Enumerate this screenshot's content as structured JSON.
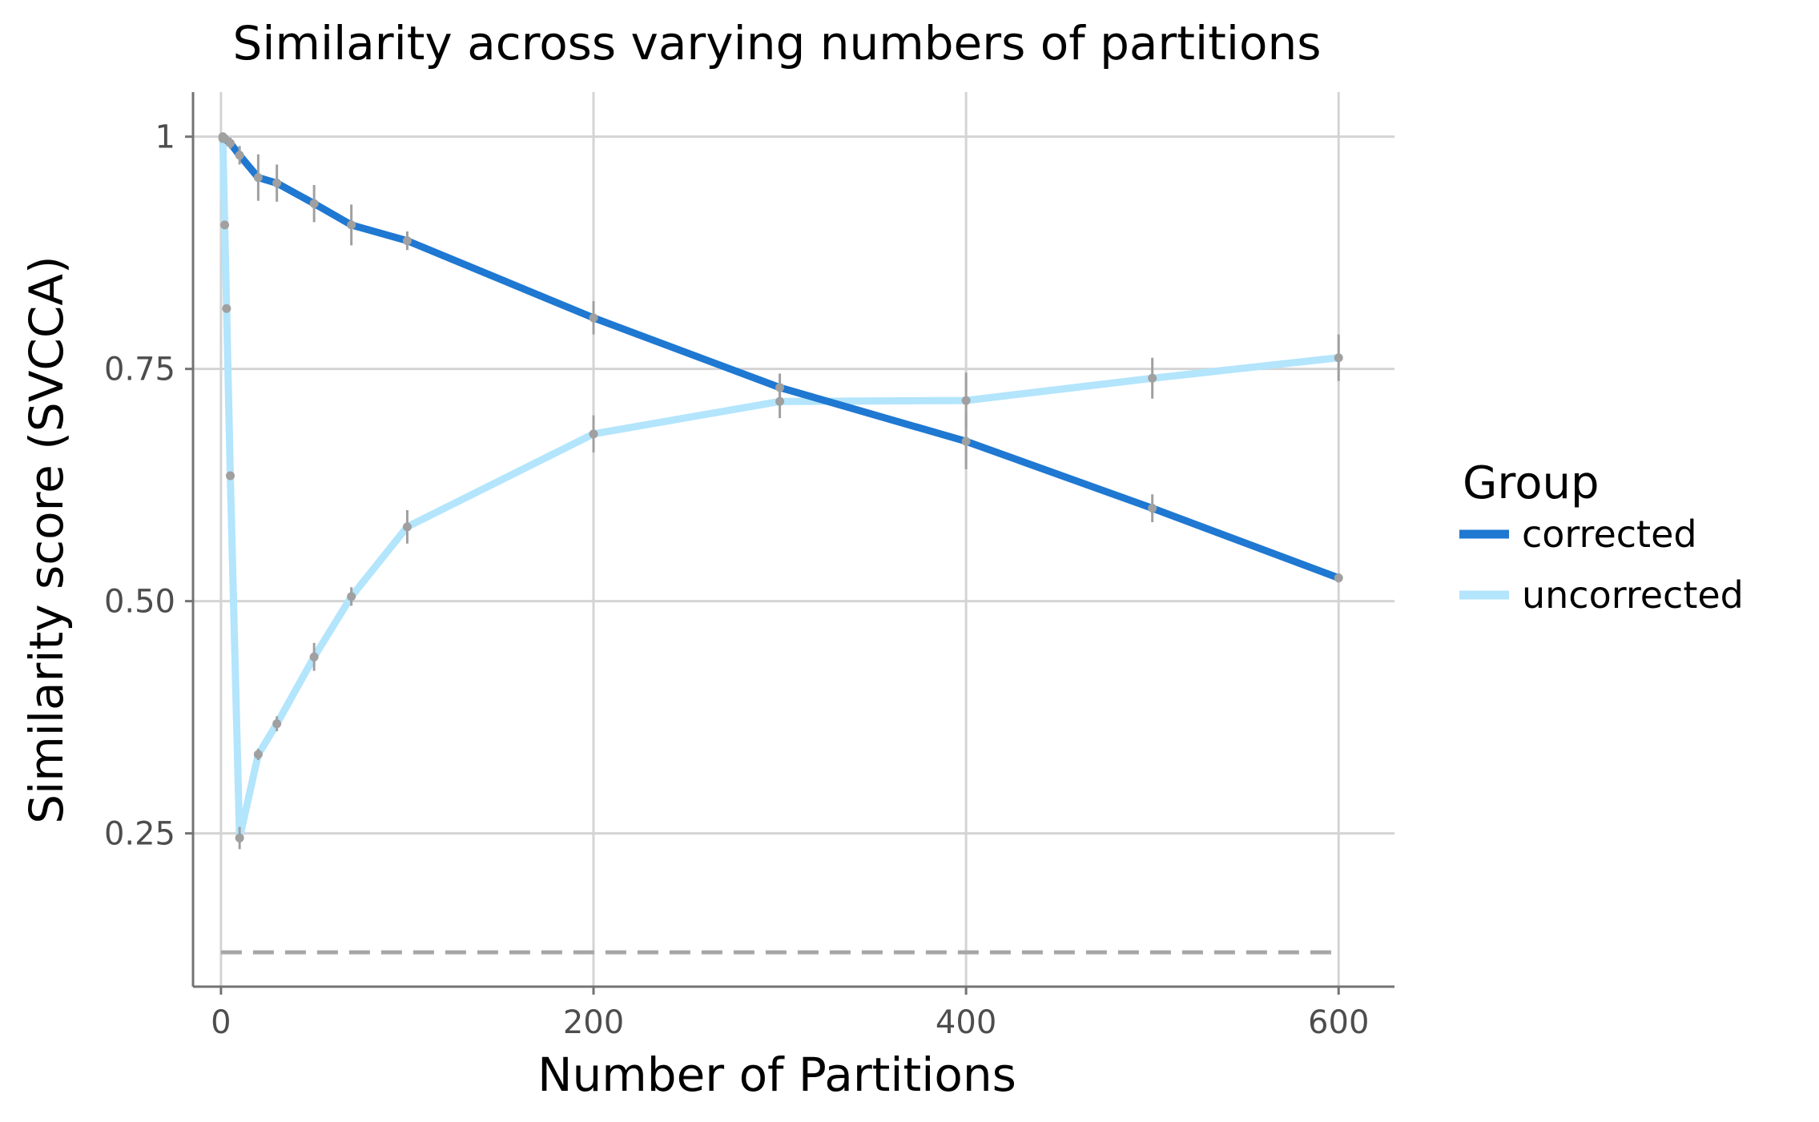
{
  "chart_data": {
    "type": "line",
    "title": "Similarity across varying numbers of partitions",
    "xlabel": "Number of Partitions",
    "ylabel": "Similarity score (SVCCA)",
    "xlim": [
      -15,
      630
    ],
    "ylim": [
      0.085,
      1.048
    ],
    "x_ticks": [
      0,
      200,
      400,
      600
    ],
    "x_tick_labels": [
      "0",
      "200",
      "400",
      "600"
    ],
    "y_ticks": [
      0.25,
      0.5,
      0.75,
      1.0
    ],
    "y_tick_labels": [
      "0.25",
      "0.50",
      "0.75",
      "1"
    ],
    "grid": true,
    "legend": {
      "title": "Group",
      "placement": "right"
    },
    "reference_line": {
      "y": 0.122,
      "x_range": [
        0,
        600
      ],
      "style": "dashed",
      "color": "#a6a6a6"
    },
    "series": [
      {
        "name": "corrected",
        "color": "#1f78d1",
        "points": [
          {
            "x": 1,
            "y": 1.0,
            "err": 0.003
          },
          {
            "x": 2,
            "y": 0.998,
            "err": 0.004
          },
          {
            "x": 5,
            "y": 0.993,
            "err": 0.006
          },
          {
            "x": 10,
            "y": 0.98,
            "err": 0.01
          },
          {
            "x": 20,
            "y": 0.956,
            "err": 0.025
          },
          {
            "x": 30,
            "y": 0.95,
            "err": 0.02
          },
          {
            "x": 50,
            "y": 0.928,
            "err": 0.02
          },
          {
            "x": 70,
            "y": 0.905,
            "err": 0.022
          },
          {
            "x": 100,
            "y": 0.888,
            "err": 0.01
          },
          {
            "x": 200,
            "y": 0.805,
            "err": 0.018
          },
          {
            "x": 300,
            "y": 0.73,
            "err": 0.015
          },
          {
            "x": 400,
            "y": 0.672,
            "err": 0.03
          },
          {
            "x": 500,
            "y": 0.6,
            "err": 0.015
          },
          {
            "x": 600,
            "y": 0.525,
            "err": 0.005
          }
        ]
      },
      {
        "name": "uncorrected",
        "color": "#b3e5fc",
        "points": [
          {
            "x": 1,
            "y": 0.998,
            "err": 0.003
          },
          {
            "x": 2,
            "y": 0.905,
            "err": 0.004
          },
          {
            "x": 3,
            "y": 0.815,
            "err": 0.004
          },
          {
            "x": 5,
            "y": 0.635,
            "err": 0.004
          },
          {
            "x": 10,
            "y": 0.245,
            "err": 0.012
          },
          {
            "x": 20,
            "y": 0.335,
            "err": 0.006
          },
          {
            "x": 30,
            "y": 0.368,
            "err": 0.008
          },
          {
            "x": 50,
            "y": 0.44,
            "err": 0.015
          },
          {
            "x": 70,
            "y": 0.505,
            "err": 0.01
          },
          {
            "x": 100,
            "y": 0.58,
            "err": 0.018
          },
          {
            "x": 200,
            "y": 0.68,
            "err": 0.02
          },
          {
            "x": 300,
            "y": 0.715,
            "err": 0.018
          },
          {
            "x": 400,
            "y": 0.716,
            "err": 0.03
          },
          {
            "x": 500,
            "y": 0.74,
            "err": 0.022
          },
          {
            "x": 600,
            "y": 0.762,
            "err": 0.025
          }
        ]
      }
    ]
  }
}
